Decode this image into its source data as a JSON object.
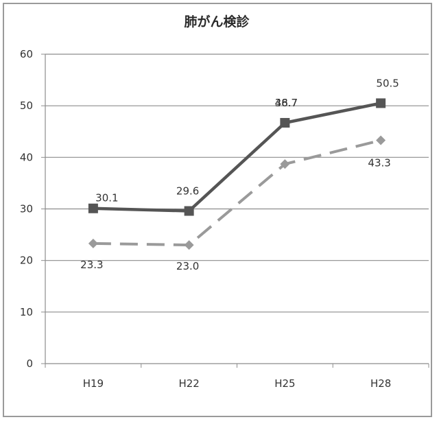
{
  "chart_data": {
    "type": "line",
    "title": "肺がん検診",
    "categories": [
      "H19",
      "H22",
      "H25",
      "H28"
    ],
    "ylim": [
      0,
      60
    ],
    "yticks": [
      0,
      10,
      20,
      30,
      40,
      50,
      60
    ],
    "grid": true,
    "legend": "none",
    "series": [
      {
        "values": [
          30.1,
          29.6,
          46.7,
          50.5
        ],
        "labels": [
          "30.1",
          "29.6",
          "46.7",
          "50.5"
        ],
        "style": "solid",
        "marker": "square",
        "color": "#555555"
      },
      {
        "values": [
          23.3,
          23.0,
          38.7,
          43.3
        ],
        "labels": [
          "23.3",
          "23.0",
          "38.7",
          "43.3"
        ],
        "style": "dashed",
        "marker": "diamond",
        "color": "#9a9a9a"
      }
    ]
  }
}
